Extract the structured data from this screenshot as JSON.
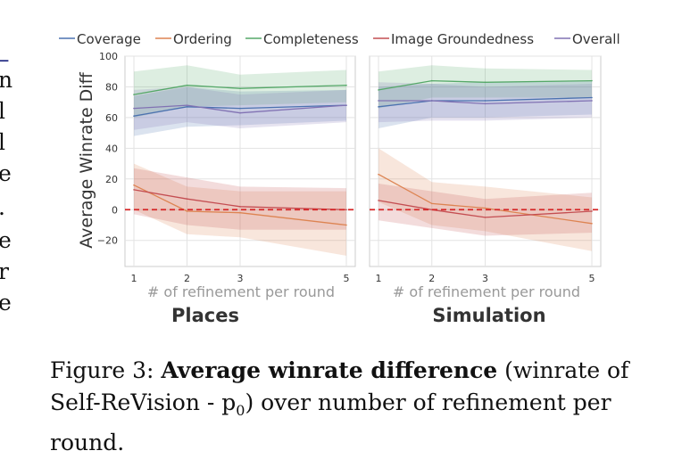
{
  "legend": [
    {
      "name": "Coverage",
      "color": "#4c72b0"
    },
    {
      "name": "Ordering",
      "color": "#dd8452"
    },
    {
      "name": "Completeness",
      "color": "#55a868"
    },
    {
      "name": "Image Groundedness",
      "color": "#c44e52"
    },
    {
      "name": "Overall",
      "color": "#8172b3"
    }
  ],
  "chart_data": [
    {
      "type": "line",
      "title": "Places",
      "xlabel": "# of refinement per round",
      "ylabel": "Average Winrate Diff",
      "x": [
        1,
        2,
        3,
        5
      ],
      "xticks": [
        "1",
        "2",
        "3",
        "5"
      ],
      "yticks": [
        "100",
        "80",
        "60",
        "40",
        "20",
        "0",
        "−20"
      ],
      "ylim": [
        -37,
        100
      ],
      "reference_line": {
        "y": 0,
        "style": "dashed",
        "color": "#d62728"
      },
      "series": [
        {
          "name": "Coverage",
          "values": [
            61,
            67,
            66,
            68
          ],
          "ci_low": [
            48,
            54,
            55,
            58
          ],
          "ci_high": [
            74,
            80,
            77,
            78
          ]
        },
        {
          "name": "Ordering",
          "values": [
            16,
            -1,
            -2,
            -10
          ],
          "ci_low": [
            0,
            -16,
            -18,
            -30
          ],
          "ci_high": [
            30,
            15,
            12,
            12
          ]
        },
        {
          "name": "Completeness",
          "values": [
            75,
            81,
            79,
            81
          ],
          "ci_low": [
            60,
            67,
            68,
            70
          ],
          "ci_high": [
            90,
            94,
            88,
            91
          ]
        },
        {
          "name": "Image Groundedness",
          "values": [
            13,
            7,
            2,
            0
          ],
          "ci_low": [
            -3,
            -10,
            -13,
            -13
          ],
          "ci_high": [
            27,
            21,
            15,
            14
          ]
        },
        {
          "name": "Overall",
          "values": [
            66,
            68,
            63,
            68
          ],
          "ci_low": [
            52,
            57,
            53,
            57
          ],
          "ci_high": [
            78,
            80,
            75,
            78
          ]
        }
      ]
    },
    {
      "type": "line",
      "title": "Simulation",
      "xlabel": "# of refinement per round",
      "ylabel": "",
      "x": [
        1,
        2,
        3,
        5
      ],
      "xticks": [
        "1",
        "2",
        "3",
        "5"
      ],
      "yticks": [],
      "ylim": [
        -37,
        100
      ],
      "reference_line": {
        "y": 0,
        "style": "dashed",
        "color": "#d62728"
      },
      "series": [
        {
          "name": "Coverage",
          "values": [
            67,
            71,
            71,
            73
          ],
          "ci_low": [
            53,
            60,
            60,
            62
          ],
          "ci_high": [
            80,
            82,
            83,
            84
          ]
        },
        {
          "name": "Ordering",
          "values": [
            23,
            4,
            1,
            -9
          ],
          "ci_low": [
            5,
            -10,
            -14,
            -27
          ],
          "ci_high": [
            40,
            18,
            15,
            8
          ]
        },
        {
          "name": "Completeness",
          "values": [
            78,
            84,
            83,
            84
          ],
          "ci_low": [
            66,
            73,
            73,
            73
          ],
          "ci_high": [
            90,
            94,
            92,
            91
          ]
        },
        {
          "name": "Image Groundedness",
          "values": [
            6,
            0,
            -5,
            -1
          ],
          "ci_low": [
            -7,
            -12,
            -17,
            -15
          ],
          "ci_high": [
            17,
            12,
            7,
            11
          ]
        },
        {
          "name": "Overall",
          "values": [
            71,
            71,
            69,
            71
          ],
          "ci_low": [
            57,
            58,
            58,
            60
          ],
          "ci_high": [
            83,
            82,
            80,
            82
          ]
        }
      ]
    }
  ],
  "caption": {
    "prefix": "Figure 3: ",
    "bold": "Average winrate difference",
    "rest": " (winrate of Self-ReVision - p",
    "sub": "0",
    "end": ") over number of refinement per round."
  },
  "edge_text": [
    "–",
    "n",
    "l",
    "l",
    "e",
    ".",
    "e",
    "r",
    "e"
  ]
}
